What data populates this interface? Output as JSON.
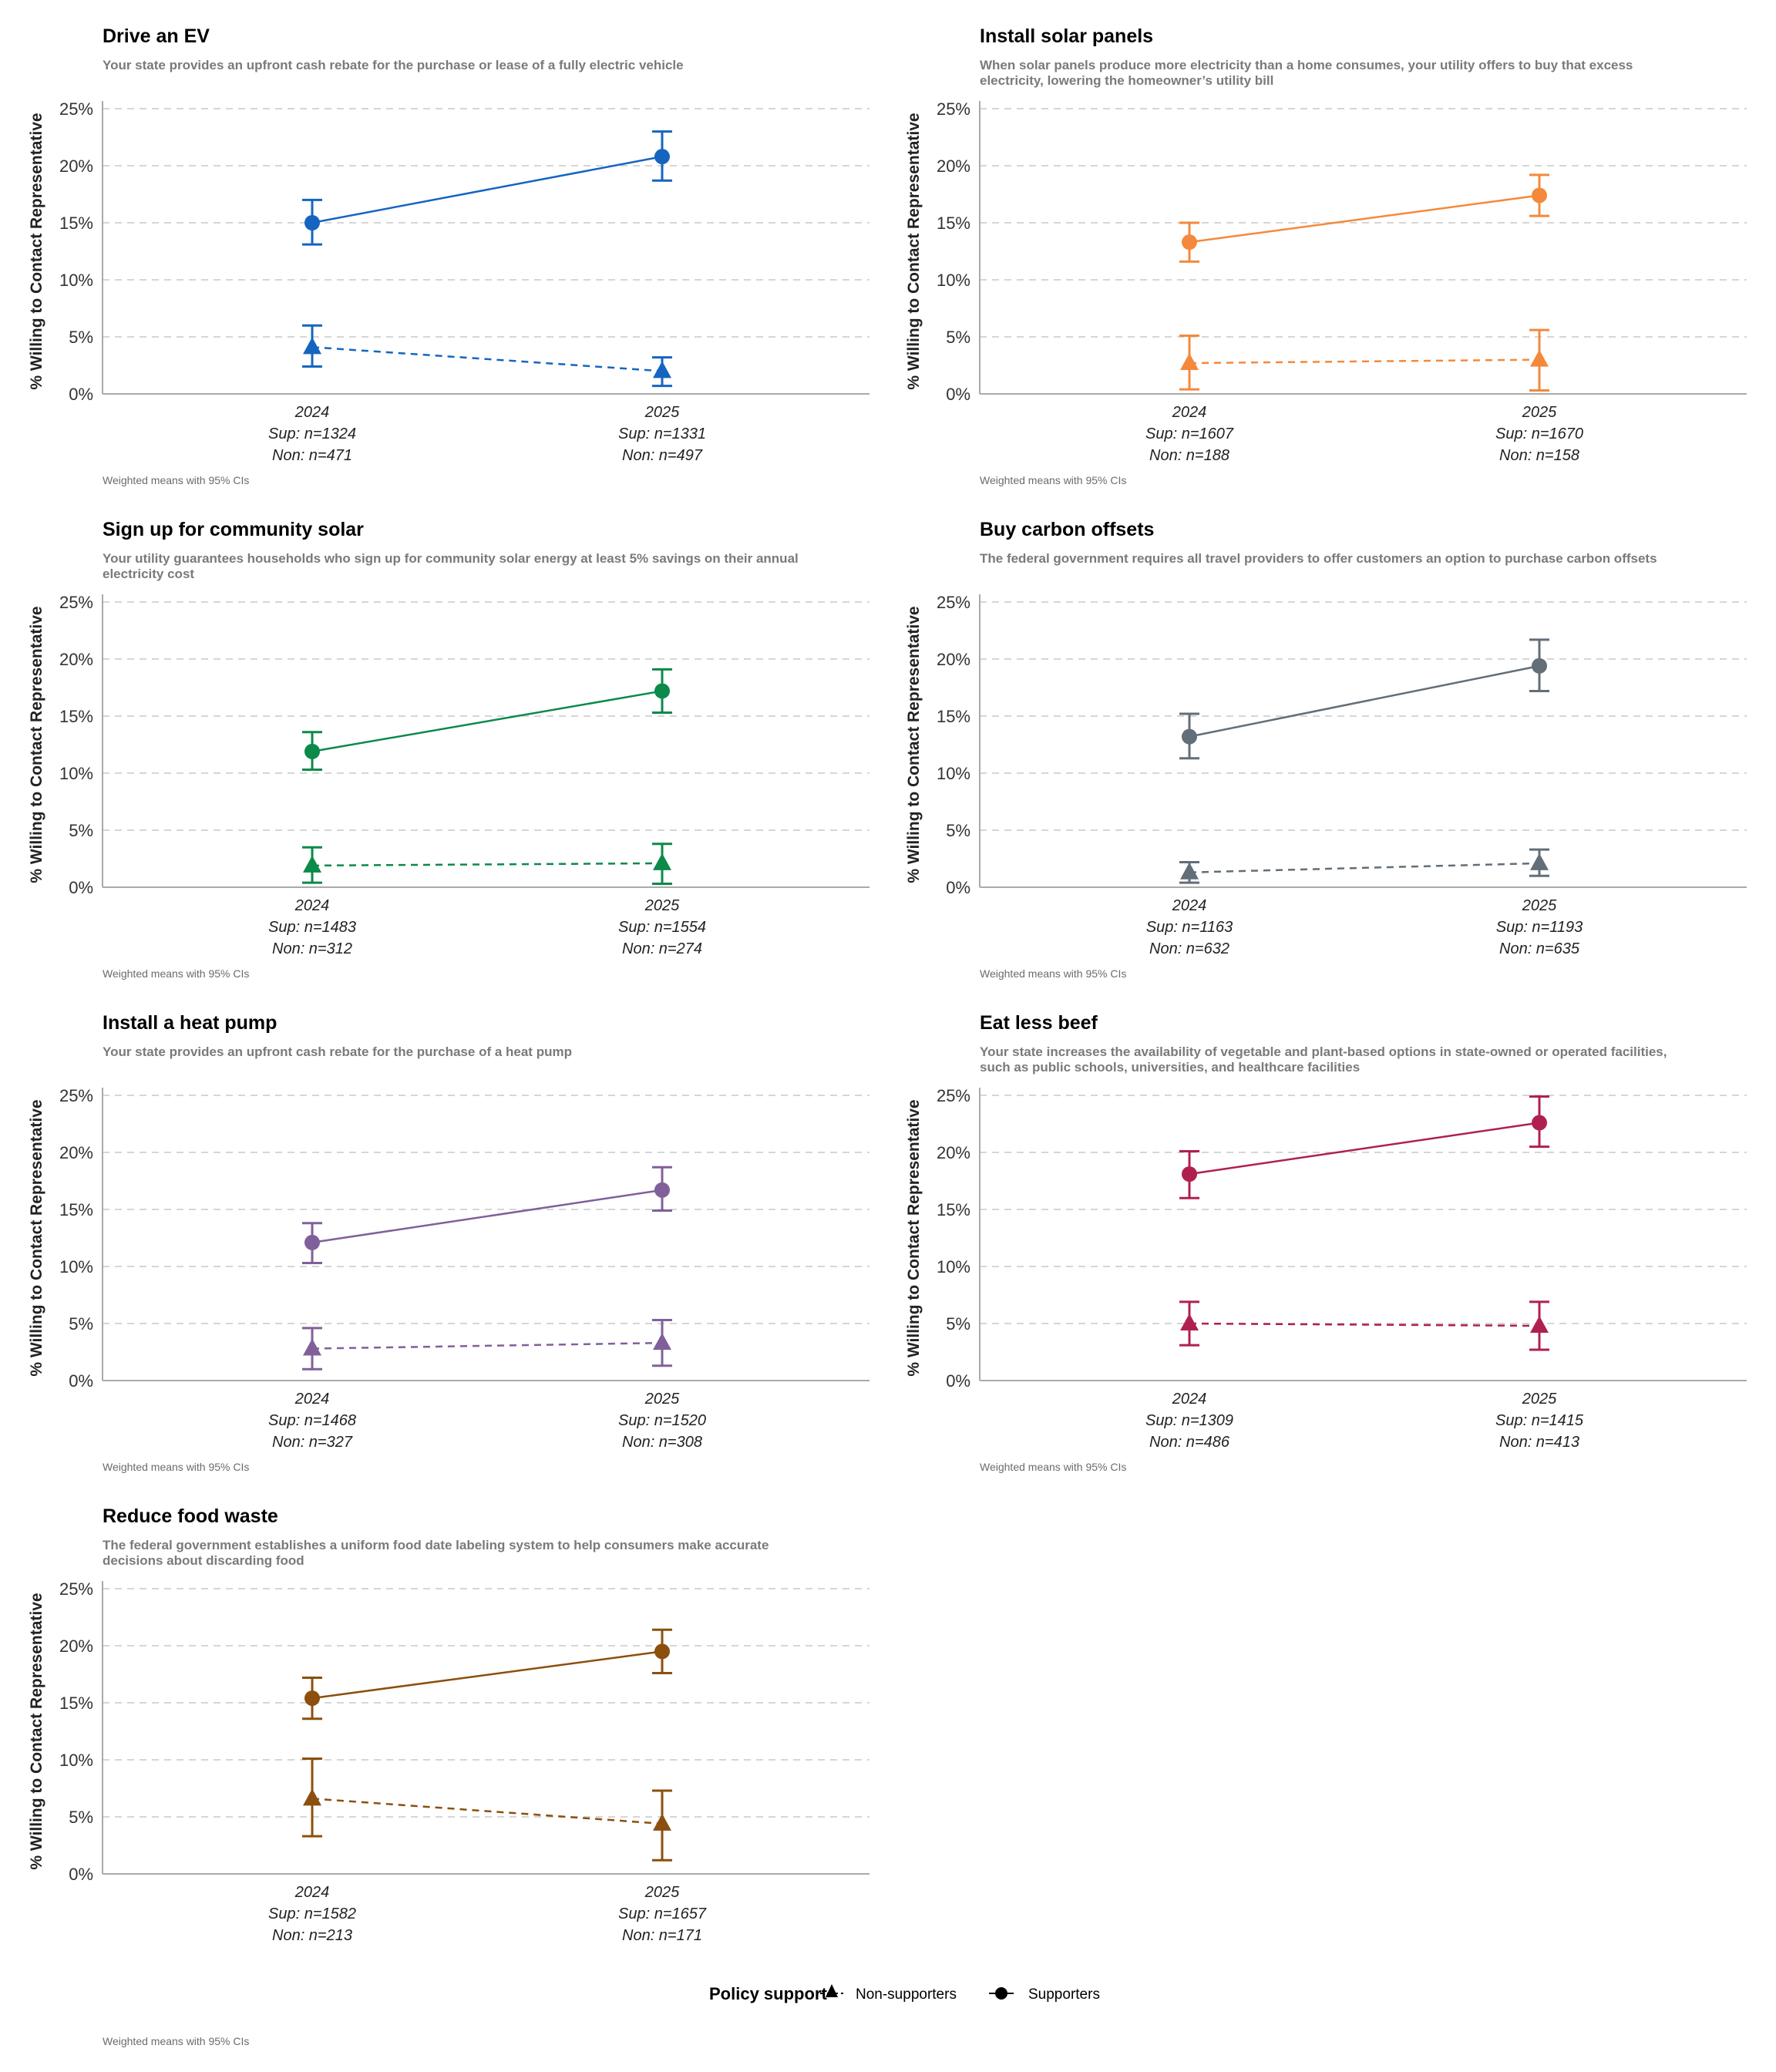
{
  "figure": {
    "y_axis_label": "% Willing to Contact Representative",
    "caption": "Weighted means with 95% CIs",
    "legend": {
      "title": "Policy support",
      "items": [
        {
          "key": "non",
          "label": "Non-supporters",
          "shape": "triangle",
          "line": "dashed"
        },
        {
          "key": "sup",
          "label": "Supporters",
          "shape": "circle",
          "line": "solid"
        }
      ]
    }
  },
  "chart_data": [
    {
      "type": "line",
      "title": "Drive an EV",
      "subtitle": [
        "Your state provides an upfront cash rebate for the purchase or lease of a fully electric vehicle"
      ],
      "color": "#1565c0",
      "ylabel": "% Willing to Contact Representative",
      "ylim": [
        0,
        25
      ],
      "yticks": [
        "0%",
        "5%",
        "10%",
        "15%",
        "20%",
        "25%"
      ],
      "grid": true,
      "categories": [
        "2024",
        "2025"
      ],
      "n_labels": [
        [
          "Sup: n=1324",
          "Non: n=471"
        ],
        [
          "Sup: n=1331",
          "Non: n=497"
        ]
      ],
      "series": [
        {
          "name": "Supporters",
          "values": [
            15.0,
            20.8
          ],
          "ci_low": [
            13.1,
            18.7
          ],
          "ci_high": [
            17.0,
            23.0
          ]
        },
        {
          "name": "Non-supporters",
          "values": [
            4.1,
            2.0
          ],
          "ci_low": [
            2.4,
            0.7
          ],
          "ci_high": [
            6.0,
            3.2
          ]
        }
      ],
      "caption": "Weighted means with 95% CIs"
    },
    {
      "type": "line",
      "title": "Install solar panels",
      "subtitle": [
        "When solar panels produce more electricity than a home consumes, your utility offers to buy that excess",
        "electricity, lowering the homeowner’s utility bill"
      ],
      "color": "#f4893b",
      "ylabel": "% Willing to Contact Representative",
      "ylim": [
        0,
        25
      ],
      "yticks": [
        "0%",
        "5%",
        "10%",
        "15%",
        "20%",
        "25%"
      ],
      "grid": true,
      "categories": [
        "2024",
        "2025"
      ],
      "n_labels": [
        [
          "Sup: n=1607",
          "Non: n=188"
        ],
        [
          "Sup: n=1670",
          "Non: n=158"
        ]
      ],
      "series": [
        {
          "name": "Supporters",
          "values": [
            13.3,
            17.4
          ],
          "ci_low": [
            11.6,
            15.6
          ],
          "ci_high": [
            15.0,
            19.2
          ]
        },
        {
          "name": "Non-supporters",
          "values": [
            2.7,
            3.0
          ],
          "ci_low": [
            0.4,
            0.3
          ],
          "ci_high": [
            5.1,
            5.6
          ]
        }
      ],
      "caption": "Weighted means with 95% CIs"
    },
    {
      "type": "line",
      "title": "Sign up for community solar",
      "subtitle": [
        "Your utility guarantees households who sign up for community solar energy at least 5% savings on their annual",
        "electricity cost"
      ],
      "color": "#0b8a4a",
      "ylabel": "% Willing to Contact Representative",
      "ylim": [
        0,
        25
      ],
      "yticks": [
        "0%",
        "5%",
        "10%",
        "15%",
        "20%",
        "25%"
      ],
      "grid": true,
      "categories": [
        "2024",
        "2025"
      ],
      "n_labels": [
        [
          "Sup: n=1483",
          "Non: n=312"
        ],
        [
          "Sup: n=1554",
          "Non: n=274"
        ]
      ],
      "series": [
        {
          "name": "Supporters",
          "values": [
            11.9,
            17.2
          ],
          "ci_low": [
            10.3,
            15.3
          ],
          "ci_high": [
            13.6,
            19.1
          ]
        },
        {
          "name": "Non-supporters",
          "values": [
            1.9,
            2.1
          ],
          "ci_low": [
            0.4,
            0.3
          ],
          "ci_high": [
            3.5,
            3.8
          ]
        }
      ],
      "caption": "Weighted means with 95% CIs"
    },
    {
      "type": "line",
      "title": "Buy carbon offsets",
      "subtitle": [
        "The federal government requires all travel providers to offer customers an option to purchase carbon offsets"
      ],
      "color": "#626e78",
      "ylabel": "% Willing to Contact Representative",
      "ylim": [
        0,
        25
      ],
      "yticks": [
        "0%",
        "5%",
        "10%",
        "15%",
        "20%",
        "25%"
      ],
      "grid": true,
      "categories": [
        "2024",
        "2025"
      ],
      "n_labels": [
        [
          "Sup: n=1163",
          "Non: n=632"
        ],
        [
          "Sup: n=1193",
          "Non: n=635"
        ]
      ],
      "series": [
        {
          "name": "Supporters",
          "values": [
            13.2,
            19.4
          ],
          "ci_low": [
            11.3,
            17.2
          ],
          "ci_high": [
            15.2,
            21.7
          ]
        },
        {
          "name": "Non-supporters",
          "values": [
            1.3,
            2.1
          ],
          "ci_low": [
            0.4,
            1.0
          ],
          "ci_high": [
            2.2,
            3.3
          ]
        }
      ],
      "caption": "Weighted means with 95% CIs"
    },
    {
      "type": "line",
      "title": "Install a heat pump",
      "subtitle": [
        "Your state provides an upfront cash rebate for the purchase of a heat pump"
      ],
      "color": "#80609a",
      "ylabel": "% Willing to Contact Representative",
      "ylim": [
        0,
        25
      ],
      "yticks": [
        "0%",
        "5%",
        "10%",
        "15%",
        "20%",
        "25%"
      ],
      "grid": true,
      "categories": [
        "2024",
        "2025"
      ],
      "n_labels": [
        [
          "Sup: n=1468",
          "Non: n=327"
        ],
        [
          "Sup: n=1520",
          "Non: n=308"
        ]
      ],
      "series": [
        {
          "name": "Supporters",
          "values": [
            12.1,
            16.7
          ],
          "ci_low": [
            10.3,
            14.9
          ],
          "ci_high": [
            13.8,
            18.7
          ]
        },
        {
          "name": "Non-supporters",
          "values": [
            2.8,
            3.3
          ],
          "ci_low": [
            1.0,
            1.3
          ],
          "ci_high": [
            4.6,
            5.3
          ]
        }
      ],
      "caption": "Weighted means with 95% CIs"
    },
    {
      "type": "line",
      "title": "Eat less beef",
      "subtitle": [
        "Your state increases the availability of vegetable and plant-based options in state-owned or operated facilities,",
        "such as public schools, universities, and healthcare facilities"
      ],
      "color": "#b0204f",
      "ylabel": "% Willing to Contact Representative",
      "ylim": [
        0,
        25
      ],
      "yticks": [
        "0%",
        "5%",
        "10%",
        "15%",
        "20%",
        "25%"
      ],
      "grid": true,
      "categories": [
        "2024",
        "2025"
      ],
      "n_labels": [
        [
          "Sup: n=1309",
          "Non: n=486"
        ],
        [
          "Sup: n=1415",
          "Non: n=413"
        ]
      ],
      "series": [
        {
          "name": "Supporters",
          "values": [
            18.1,
            22.6
          ],
          "ci_low": [
            16.0,
            20.5
          ],
          "ci_high": [
            20.1,
            24.9
          ]
        },
        {
          "name": "Non-supporters",
          "values": [
            5.0,
            4.8
          ],
          "ci_low": [
            3.1,
            2.7
          ],
          "ci_high": [
            6.9,
            6.9
          ]
        }
      ],
      "caption": "Weighted means with 95% CIs"
    },
    {
      "type": "line",
      "title": "Reduce food waste",
      "subtitle": [
        "The federal government establishes a uniform food date labeling system to help consumers make accurate",
        "decisions about discarding food"
      ],
      "color": "#8c4f0e",
      "ylabel": "% Willing to Contact Representative",
      "ylim": [
        0,
        25
      ],
      "yticks": [
        "0%",
        "5%",
        "10%",
        "15%",
        "20%",
        "25%"
      ],
      "grid": true,
      "categories": [
        "2024",
        "2025"
      ],
      "n_labels": [
        [
          "Sup: n=1582",
          "Non: n=213"
        ],
        [
          "Sup: n=1657",
          "Non: n=171"
        ]
      ],
      "series": [
        {
          "name": "Supporters",
          "values": [
            15.4,
            19.5
          ],
          "ci_low": [
            13.6,
            17.6
          ],
          "ci_high": [
            17.2,
            21.4
          ]
        },
        {
          "name": "Non-supporters",
          "values": [
            6.6,
            4.4
          ],
          "ci_low": [
            3.3,
            1.2
          ],
          "ci_high": [
            10.1,
            7.3
          ]
        }
      ],
      "caption": ""
    }
  ]
}
